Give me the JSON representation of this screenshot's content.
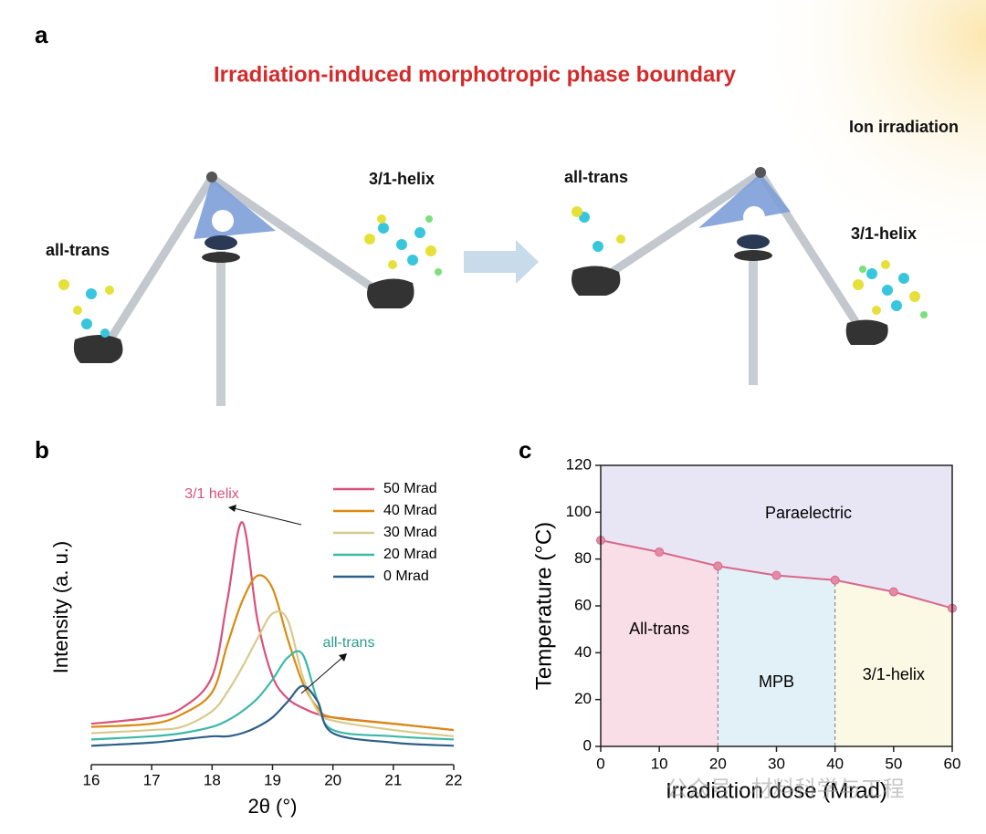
{
  "panel_a": {
    "label": "a",
    "title": "Irradiation-induced morphotropic phase boundary",
    "ion_label": "Ion irradiation",
    "before": {
      "left": "all-trans",
      "right": "3/1-helix"
    },
    "after": {
      "left": "all-trans",
      "right": "3/1-helix"
    }
  },
  "watermark": "公众号 · 材料科学与工程",
  "chart_data": [
    {
      "panel": "b",
      "type": "line",
      "xlabel": "2θ (°)",
      "ylabel": "Intensity (a. u.)",
      "x": [
        16,
        17,
        17.5,
        18,
        18.25,
        18.5,
        18.75,
        19,
        19.25,
        19.5,
        19.75,
        20,
        21,
        22
      ],
      "xlim": [
        16,
        22
      ],
      "xticks": [
        16,
        17,
        18,
        19,
        20,
        21,
        22
      ],
      "ylim": [
        0,
        100
      ],
      "legend": "upper right",
      "series": [
        {
          "name": "50 Mrad",
          "color": "#d9507a",
          "values": [
            13,
            15,
            18,
            28,
            52,
            77,
            46,
            28,
            21,
            18,
            16,
            15,
            13,
            11
          ]
        },
        {
          "name": "40 Mrad",
          "color": "#d98a10",
          "values": [
            12,
            13,
            16,
            23,
            38,
            52,
            60,
            56,
            40,
            26,
            18,
            15,
            13,
            11
          ]
        },
        {
          "name": "30 Mrad",
          "color": "#d9c98c",
          "values": [
            10,
            11,
            12,
            17,
            23,
            31,
            40,
            48,
            46,
            28,
            17,
            14,
            11,
            9
          ]
        },
        {
          "name": "20 Mrad",
          "color": "#3bb8a8",
          "values": [
            8,
            9,
            10,
            12,
            14,
            17,
            21,
            27,
            34,
            35,
            20,
            11,
            9,
            8
          ]
        },
        {
          "name": "0 Mrad",
          "color": "#2e5f8a",
          "values": [
            6,
            7,
            8,
            9,
            9,
            10,
            12,
            15,
            20,
            25,
            20,
            10,
            7,
            6
          ]
        }
      ],
      "annotations": [
        {
          "text": "3/1 helix",
          "color": "#d9507a"
        },
        {
          "text": "all-trans",
          "color": "#2a9d8f"
        }
      ]
    },
    {
      "panel": "c",
      "type": "line",
      "xlabel": "Irradiation dose (Mrad)",
      "ylabel": "Temperature (°C)",
      "x": [
        0,
        10,
        20,
        30,
        40,
        50,
        60
      ],
      "values": [
        88,
        83,
        77,
        73,
        71,
        66,
        59
      ],
      "color": "#d9668a",
      "xlim": [
        0,
        60
      ],
      "ylim": [
        0,
        120
      ],
      "xticks": [
        0,
        10,
        20,
        30,
        40,
        50,
        60
      ],
      "yticks": [
        0,
        20,
        40,
        60,
        80,
        100,
        120
      ],
      "regions": [
        {
          "label": "Paraelectric",
          "color": "#e8e6f5"
        },
        {
          "label": "All-trans",
          "x": [
            0,
            20
          ],
          "color": "#f9dde7"
        },
        {
          "label": "MPB",
          "x": [
            20,
            40
          ],
          "color": "#e2f1f8"
        },
        {
          "label": "3/1-helix",
          "x": [
            40,
            60
          ],
          "color": "#fbf8e4"
        }
      ]
    }
  ]
}
